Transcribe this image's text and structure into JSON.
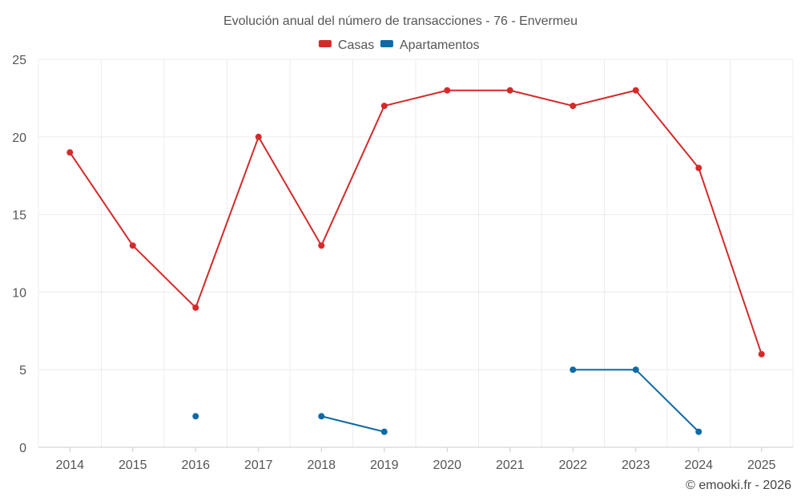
{
  "chart_data": {
    "type": "line",
    "title": "Evolución anual del número de transacciones - 76 - Envermeu",
    "categories": [
      "2014",
      "2015",
      "2016",
      "2017",
      "2018",
      "2019",
      "2020",
      "2021",
      "2022",
      "2023",
      "2024",
      "2025"
    ],
    "series": [
      {
        "name": "Casas",
        "color": "#d42a2a",
        "values": [
          19,
          13,
          9,
          20,
          13,
          22,
          23,
          23,
          22,
          23,
          18,
          6
        ]
      },
      {
        "name": "Apartamentos",
        "color": "#0f6aa3",
        "values": [
          null,
          null,
          2,
          null,
          2,
          1,
          null,
          null,
          5,
          5,
          1,
          null
        ]
      }
    ],
    "yticks": [
      0,
      5,
      10,
      15,
      20,
      25
    ],
    "ylim": [
      0,
      25
    ],
    "grid": true,
    "legend": "top-center",
    "credit": "© emooki.fr - 2026"
  }
}
